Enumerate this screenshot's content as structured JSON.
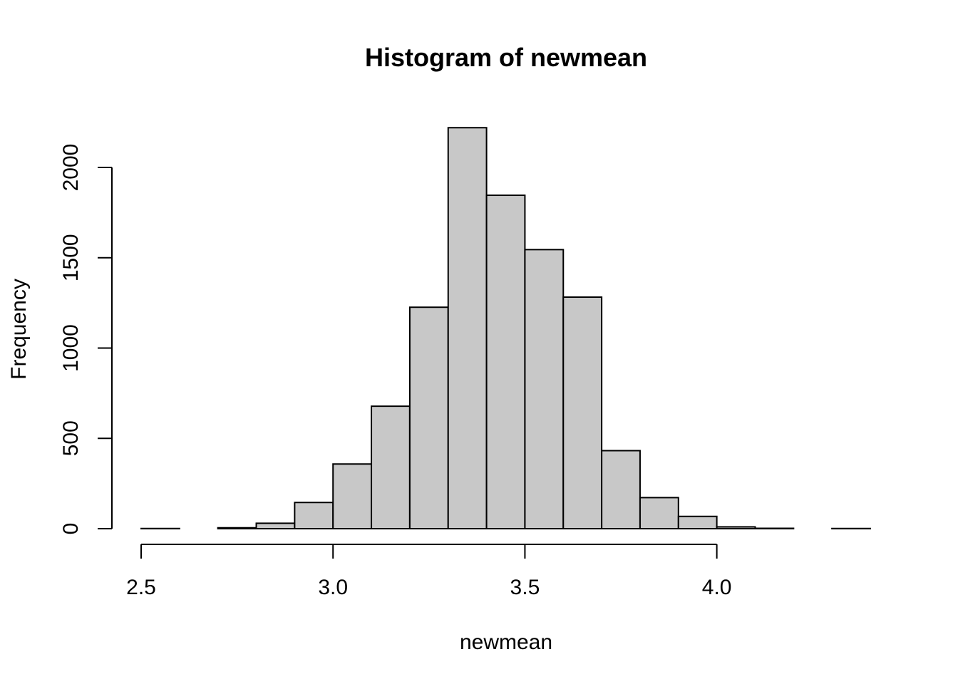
{
  "chart_data": {
    "type": "bar",
    "title": "Histogram of newmean",
    "xlabel": "newmean",
    "ylabel": "Frequency",
    "bar_color": "#c8c8c8",
    "edge_color": "#000000",
    "xlim": [
      2.5,
      4.4
    ],
    "ylim": [
      0,
      2220
    ],
    "x_ticks": [
      2.5,
      3.0,
      3.5,
      4.0
    ],
    "x_tick_labels": [
      "2.5",
      "3.0",
      "3.5",
      "4.0"
    ],
    "y_ticks": [
      0,
      500,
      1000,
      1500,
      2000
    ],
    "y_tick_labels": [
      "0",
      "500",
      "1000",
      "1500",
      "2000"
    ],
    "bins": [
      {
        "start": 2.5,
        "end": 2.6,
        "count": 1
      },
      {
        "start": 2.6,
        "end": 2.7,
        "count": 0
      },
      {
        "start": 2.7,
        "end": 2.8,
        "count": 5
      },
      {
        "start": 2.8,
        "end": 2.9,
        "count": 30
      },
      {
        "start": 2.9,
        "end": 3.0,
        "count": 145
      },
      {
        "start": 3.0,
        "end": 3.1,
        "count": 358
      },
      {
        "start": 3.1,
        "end": 3.2,
        "count": 678
      },
      {
        "start": 3.2,
        "end": 3.3,
        "count": 1226
      },
      {
        "start": 3.3,
        "end": 3.4,
        "count": 2220
      },
      {
        "start": 3.4,
        "end": 3.5,
        "count": 1846
      },
      {
        "start": 3.5,
        "end": 3.6,
        "count": 1545
      },
      {
        "start": 3.6,
        "end": 3.7,
        "count": 1282
      },
      {
        "start": 3.7,
        "end": 3.8,
        "count": 432
      },
      {
        "start": 3.8,
        "end": 3.9,
        "count": 172
      },
      {
        "start": 3.9,
        "end": 4.0,
        "count": 68
      },
      {
        "start": 4.0,
        "end": 4.1,
        "count": 10
      },
      {
        "start": 4.1,
        "end": 4.2,
        "count": 2
      },
      {
        "start": 4.2,
        "end": 4.3,
        "count": 0
      },
      {
        "start": 4.3,
        "end": 4.4,
        "count": 1
      }
    ]
  }
}
